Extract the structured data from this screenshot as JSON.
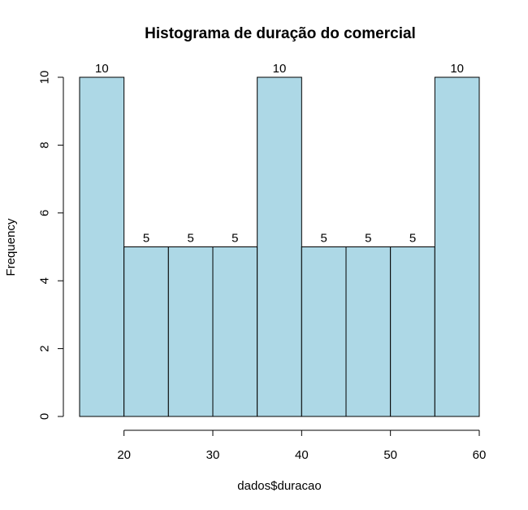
{
  "chart_data": {
    "type": "bar",
    "title": "Histograma de duração do comercial",
    "xlabel": "dados$duracao",
    "ylabel": "Frequency",
    "bins": [
      {
        "from": 15,
        "to": 20,
        "count": 10
      },
      {
        "from": 20,
        "to": 25,
        "count": 5
      },
      {
        "from": 25,
        "to": 30,
        "count": 5
      },
      {
        "from": 30,
        "to": 35,
        "count": 5
      },
      {
        "from": 35,
        "to": 40,
        "count": 10
      },
      {
        "from": 40,
        "to": 45,
        "count": 5
      },
      {
        "from": 45,
        "to": 50,
        "count": 5
      },
      {
        "from": 50,
        "to": 55,
        "count": 5
      },
      {
        "from": 55,
        "to": 60,
        "count": 10
      }
    ],
    "xticks": [
      20,
      30,
      40,
      50,
      60
    ],
    "yticks": [
      0,
      2,
      4,
      6,
      8,
      10
    ],
    "xlim": [
      15,
      60
    ],
    "ylim": [
      0,
      10
    ],
    "bar_color": "#add8e6",
    "grid": false,
    "legend": "none"
  }
}
